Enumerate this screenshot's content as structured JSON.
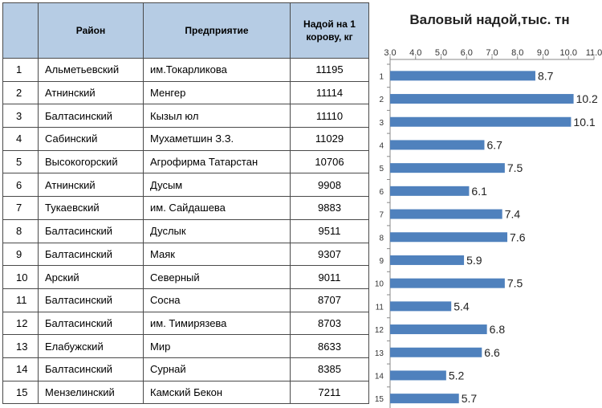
{
  "table": {
    "headers": [
      "",
      "Район",
      "Предприятие",
      "Надой на 1 корову, кг"
    ],
    "rows": [
      [
        "1",
        "Альметьевский",
        "им.Токарликова",
        "11195"
      ],
      [
        "2",
        "Атнинский",
        "Менгер",
        "11114"
      ],
      [
        "3",
        "Балтасинский",
        "Кызыл юл",
        "11110"
      ],
      [
        "4",
        "Сабинский",
        "Мухаметшин З.З.",
        "11029"
      ],
      [
        "5",
        "Высокогорский",
        "Агрофирма Татарстан",
        "10706"
      ],
      [
        "6",
        "Атнинский",
        "Дусым",
        "9908"
      ],
      [
        "7",
        "Тукаевский",
        "им. Сайдашева",
        "9883"
      ],
      [
        "8",
        "Балтасинский",
        "Дуслык",
        "9511"
      ],
      [
        "9",
        "Балтасинский",
        "Маяк",
        "9307"
      ],
      [
        "10",
        "Арский",
        "Северный",
        "9011"
      ],
      [
        "11",
        "Балтасинский",
        "Сосна",
        "8707"
      ],
      [
        "12",
        "Балтасинский",
        "им. Тимирязева",
        "8703"
      ],
      [
        "13",
        "Елабужский",
        "Мир",
        "8633"
      ],
      [
        "14",
        "Балтасинский",
        "Сурнай",
        "8385"
      ],
      [
        "15",
        "Мензелинский",
        "Камский Бекон",
        "7211"
      ]
    ]
  },
  "chart_data": {
    "type": "bar",
    "orientation": "horizontal",
    "title": "Валовый надой,тыс. тн",
    "categories": [
      "1",
      "2",
      "3",
      "4",
      "5",
      "6",
      "7",
      "8",
      "9",
      "10",
      "11",
      "12",
      "13",
      "14",
      "15"
    ],
    "values": [
      8.7,
      10.2,
      10.1,
      6.7,
      7.5,
      6.1,
      7.4,
      7.6,
      5.9,
      7.5,
      5.4,
      6.8,
      6.6,
      5.2,
      5.7
    ],
    "value_labels": [
      "8.7",
      "10.2",
      "10.1",
      "6.7",
      "7.5",
      "6.1",
      "7.4",
      "7.6",
      "5.9",
      "7.5",
      "5.4",
      "6.8",
      "6.6",
      "5.2",
      "5.7"
    ],
    "xlim": [
      3.0,
      11.0
    ],
    "xticks": [
      "3.0",
      "4.0",
      "5.0",
      "6.0",
      "7.0",
      "8.0",
      "9.0",
      "10.0",
      "11.0"
    ],
    "xaxis_position": "top",
    "grid": false,
    "bar_color": "#4f81bd"
  }
}
